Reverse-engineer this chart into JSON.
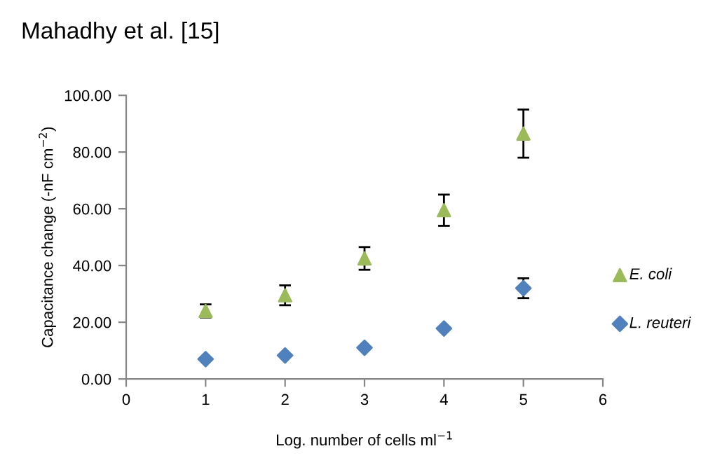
{
  "chart_data": {
    "type": "scatter",
    "title": "Mahadhy et al. [15]",
    "xlabel": "Log. number of cells ml$^{−1}$",
    "ylabel": "Capacitance change (-nF cm$^{−2}$)",
    "x": [
      1,
      2,
      3,
      4,
      5
    ],
    "series": [
      {
        "name": "E. coli",
        "color": "#9bbb59",
        "marker": "triangle",
        "values": [
          24,
          29.5,
          42.5,
          59.5,
          86.5
        ],
        "errors": [
          2.3,
          3.5,
          4,
          5.5,
          8.5
        ]
      },
      {
        "name": "L. reuteri",
        "color": "#4f81bd",
        "marker": "diamond",
        "values": [
          7,
          8.3,
          11,
          17.8,
          32
        ],
        "errors": [
          null,
          null,
          null,
          null,
          3.5
        ]
      }
    ],
    "xlim": [
      0,
      6
    ],
    "xticks": [
      0,
      1,
      2,
      3,
      4,
      5,
      6
    ],
    "ylim": [
      0,
      100
    ],
    "yticks": [
      {
        "value": 0,
        "label": "0.00"
      },
      {
        "value": 20,
        "label": "20.00"
      },
      {
        "value": 40,
        "label": "40.00"
      },
      {
        "value": 60,
        "label": "60.00"
      },
      {
        "value": 80,
        "label": "80.00"
      },
      {
        "value": 100,
        "label": "100.00"
      }
    ],
    "grid": false,
    "legend": "right"
  }
}
